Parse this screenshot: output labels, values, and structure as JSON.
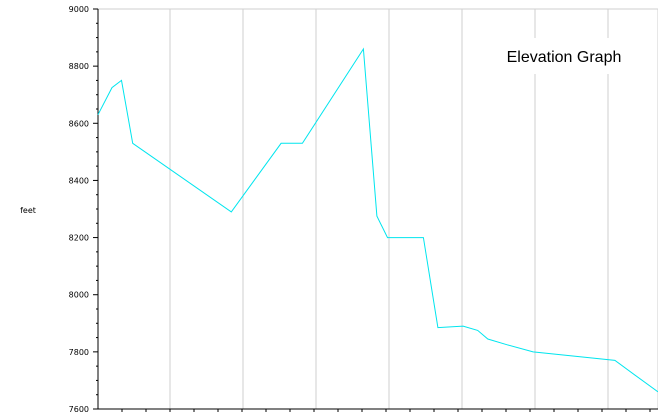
{
  "chart_data": {
    "type": "line",
    "title": "Elevation Graph",
    "xlabel": "",
    "ylabel": "feet",
    "ylim": [
      7600,
      9000
    ],
    "yticks": [
      7600,
      7800,
      8000,
      8200,
      8400,
      8600,
      8800,
      9000
    ],
    "ytick_labels": [
      "7600",
      "7800",
      "8000",
      "8200",
      "8400",
      "8600",
      "8800",
      "9000"
    ],
    "xlim": [
      0,
      100
    ],
    "grid": "vertical",
    "line_color": "#00e5ee",
    "series": [
      {
        "x": [
          0,
          2.5,
          4.2,
          6.2,
          23.8,
          32.7,
          36.5,
          47.4,
          49.8,
          51.7,
          58.1,
          60.7,
          65.2,
          67.8,
          69.6,
          73.0,
          77.7,
          92.3,
          100
        ],
        "y": [
          8630,
          8725,
          8750,
          8530,
          8290,
          8530,
          8530,
          8860,
          8275,
          8200,
          8200,
          7885,
          7890,
          7875,
          7845,
          7825,
          7800,
          7770,
          7660
        ]
      }
    ]
  }
}
